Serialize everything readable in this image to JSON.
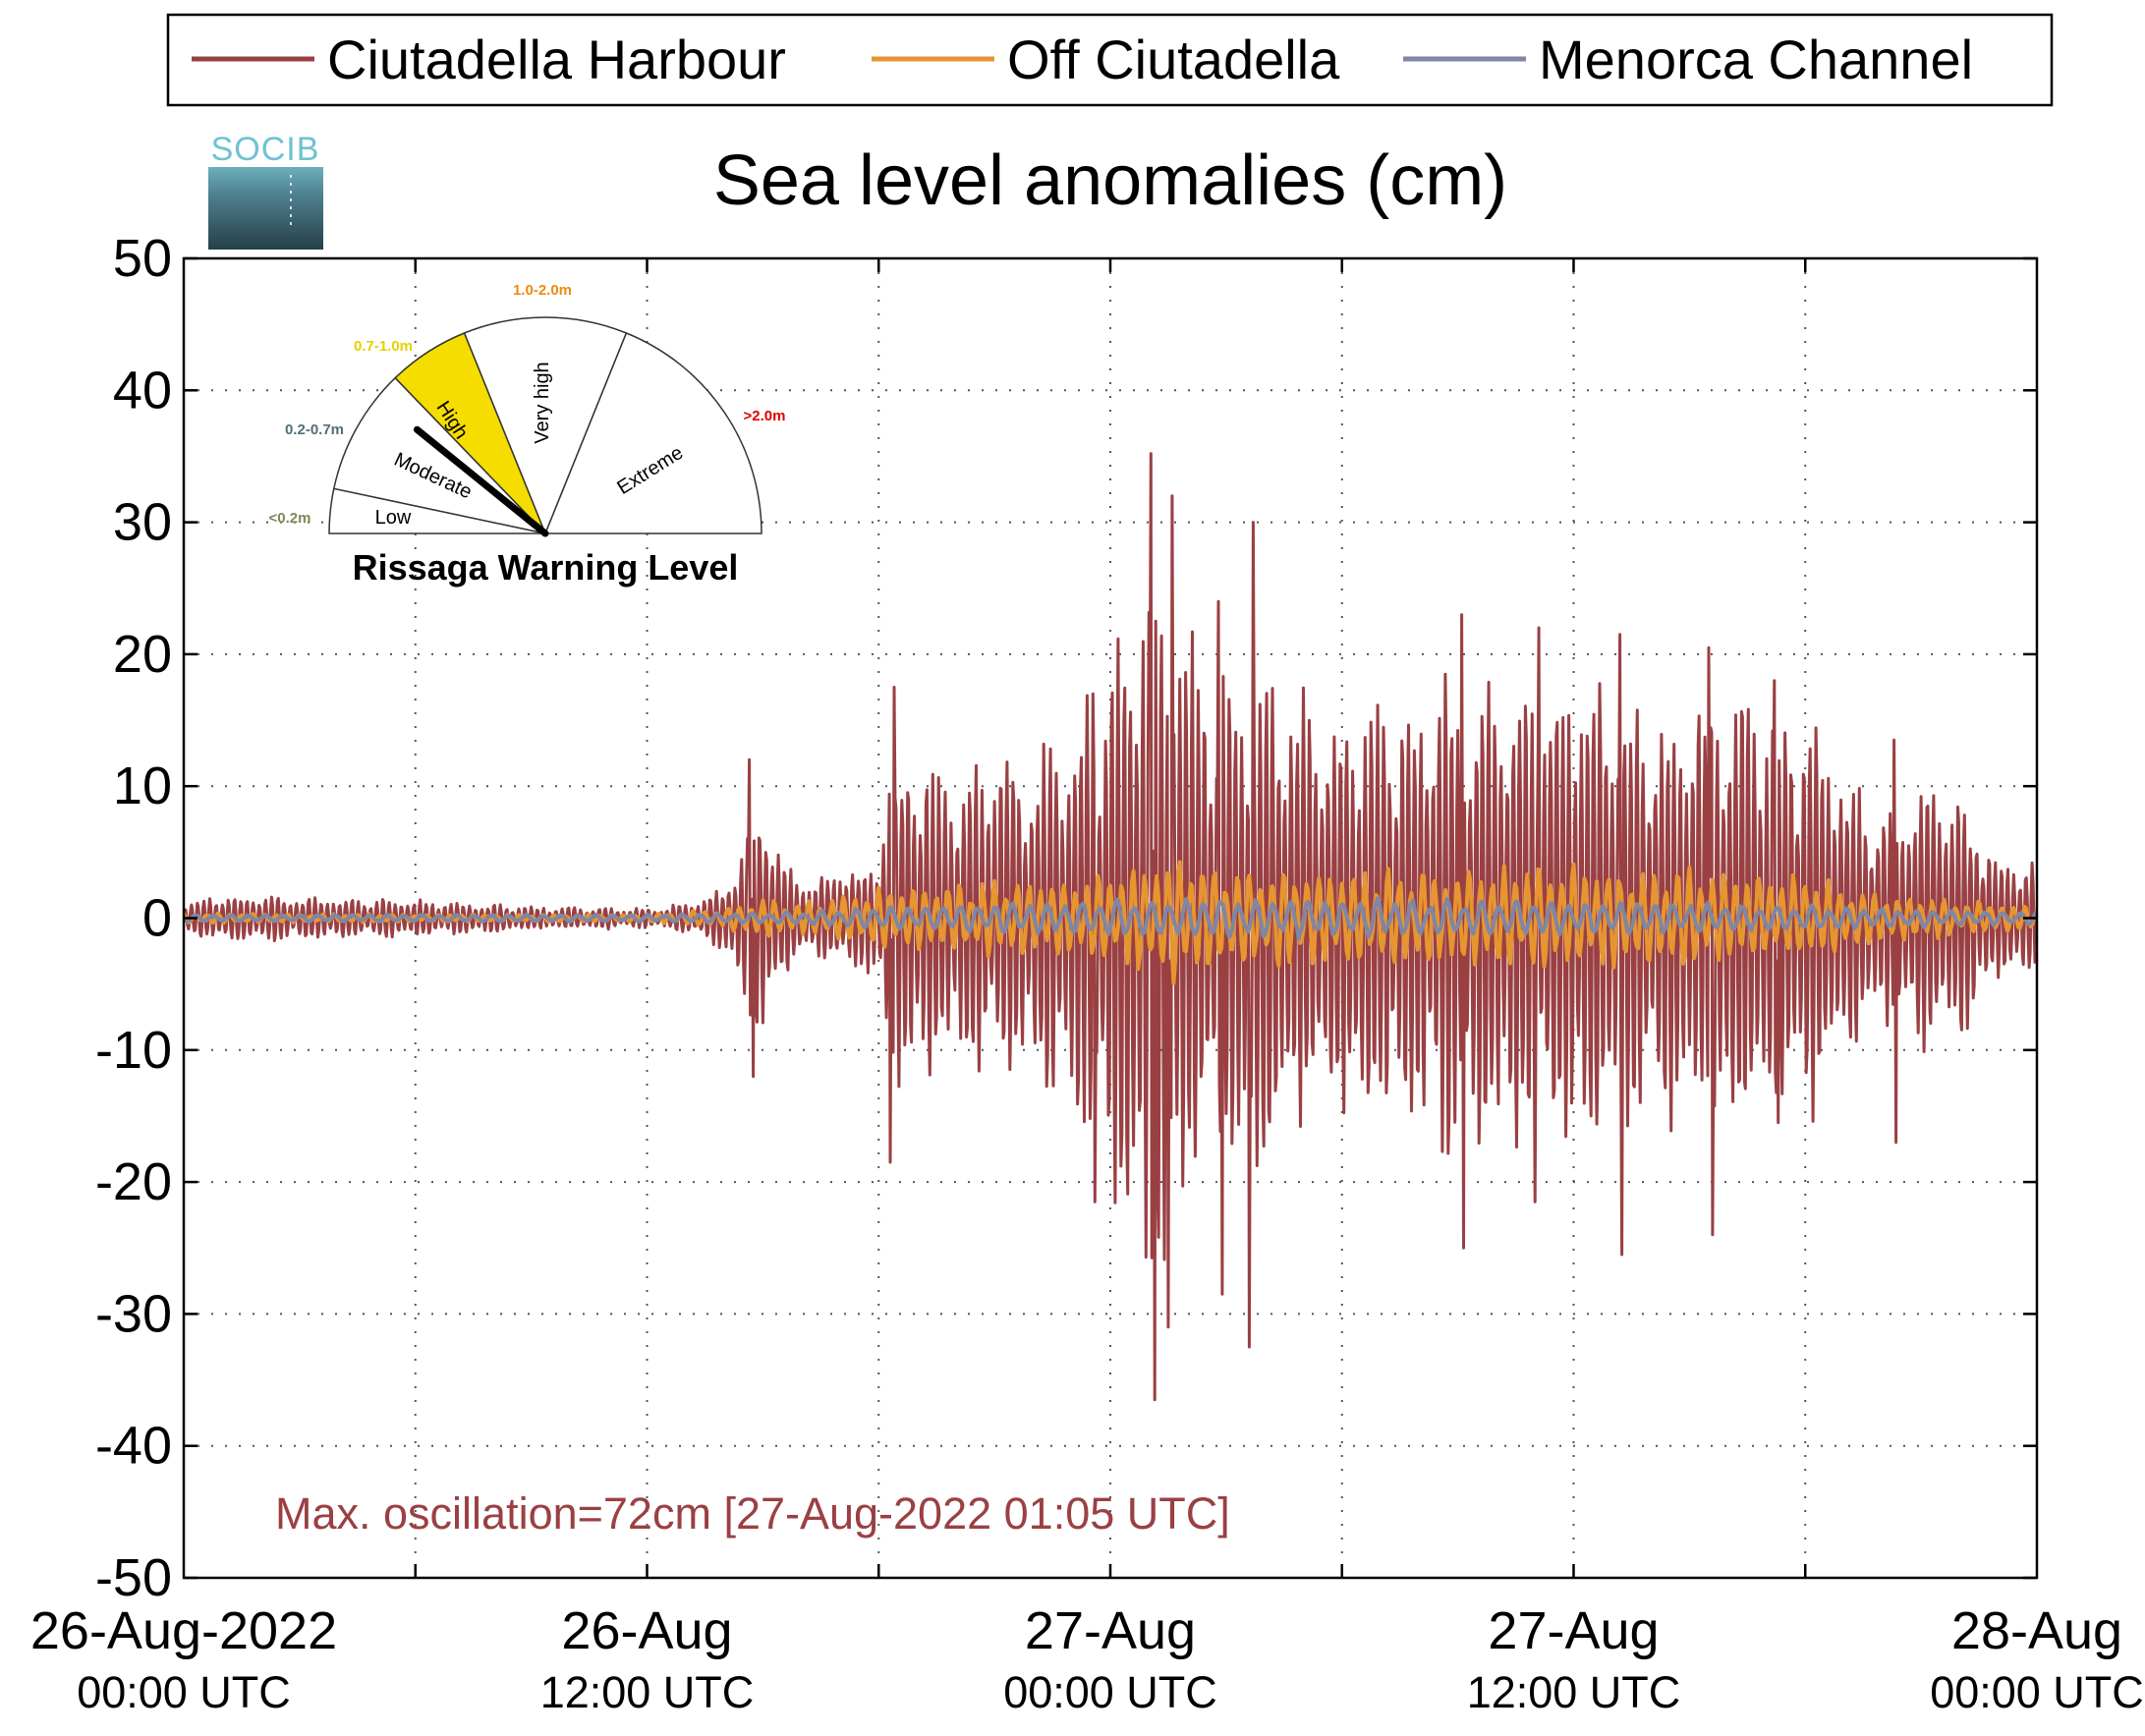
{
  "chart_data": {
    "type": "line",
    "title": "Sea level anomalies (cm)",
    "xlabel": "",
    "ylabel": "",
    "x_range": [
      "2022-08-26T00:00Z",
      "2022-08-28T00:00Z"
    ],
    "ylim": [
      -50,
      50
    ],
    "yticks": [
      50,
      40,
      30,
      20,
      10,
      0,
      -10,
      -20,
      -30,
      -40,
      -50
    ],
    "y_tick_labels": [
      "50",
      "40",
      "30",
      "20",
      "10",
      "0",
      "-10",
      "-20",
      "-30",
      "-40",
      "-50"
    ],
    "xticks": [
      {
        "top": "26-Aug-2022",
        "bottom": "00:00 UTC"
      },
      {
        "top": "26-Aug",
        "bottom": "12:00 UTC"
      },
      {
        "top": "27-Aug",
        "bottom": "00:00 UTC"
      },
      {
        "top": "27-Aug",
        "bottom": "12:00 UTC"
      },
      {
        "top": "28-Aug",
        "bottom": "00:00 UTC"
      }
    ],
    "grid": true,
    "legend_position": "top",
    "series": [
      {
        "name": "Ciutadella Harbour",
        "color": "#9a4043",
        "stroke_width": 3,
        "envelope_hours": [
          0,
          1,
          3,
          6,
          9,
          12,
          13,
          14,
          14.5,
          15,
          15.5,
          16,
          17,
          18,
          18.2,
          19,
          20,
          21,
          22,
          23,
          24,
          25,
          25.5,
          26,
          26.5,
          27,
          28,
          29,
          30,
          31,
          32,
          33,
          34,
          35,
          36,
          37,
          38,
          39,
          40,
          41,
          42,
          43,
          44,
          45,
          46,
          47,
          48
        ],
        "envelope_cm": [
          1.2,
          2,
          1.8,
          1.5,
          1,
          0.8,
          1.2,
          2.5,
          7,
          10,
          5,
          3,
          4,
          5,
          13,
          14,
          12,
          13,
          14,
          15,
          22,
          32,
          30,
          24,
          21,
          20,
          22,
          18,
          17,
          18,
          18,
          20,
          20,
          19,
          20,
          20,
          17,
          18,
          19,
          18,
          17,
          12,
          9,
          11,
          10,
          5,
          5
        ],
        "peaks": [
          {
            "t": 25.05,
            "v": 35.2
          },
          {
            "t": 25.15,
            "v": -36.5
          },
          {
            "t": 25.6,
            "v": 32
          },
          {
            "t": 25.5,
            "v": -31
          },
          {
            "t": 27.7,
            "v": 30
          },
          {
            "t": 27.6,
            "v": -32.5
          },
          {
            "t": 26.8,
            "v": 24
          },
          {
            "t": 26.9,
            "v": -28.5
          },
          {
            "t": 23.55,
            "v": 17
          },
          {
            "t": 23.6,
            "v": -21.5
          },
          {
            "t": 18.4,
            "v": 17.5
          },
          {
            "t": 18.3,
            "v": -18.5
          },
          {
            "t": 33.1,
            "v": 23
          },
          {
            "t": 33.15,
            "v": -25
          },
          {
            "t": 35.1,
            "v": 22
          },
          {
            "t": 35.0,
            "v": -21.5
          },
          {
            "t": 37.2,
            "v": 21.5
          },
          {
            "t": 37.25,
            "v": -25.5
          },
          {
            "t": 39.5,
            "v": 20.5
          },
          {
            "t": 39.6,
            "v": -24
          },
          {
            "t": 41.2,
            "v": 18
          },
          {
            "t": 41.3,
            "v": -15.5
          },
          {
            "t": 44.3,
            "v": 13.5
          },
          {
            "t": 44.35,
            "v": -17
          },
          {
            "t": 14.65,
            "v": 12
          },
          {
            "t": 14.75,
            "v": -12
          }
        ]
      },
      {
        "name": "Off Ciutadella",
        "color": "#e69530",
        "stroke_width": 4,
        "envelope_hours": [
          0,
          6,
          12,
          14,
          15,
          16,
          18,
          20,
          24,
          25,
          26,
          28,
          30,
          33,
          36,
          39,
          42,
          44,
          46,
          48
        ],
        "envelope_cm": [
          0.4,
          0.3,
          0.3,
          0.8,
          1.5,
          1.2,
          2.5,
          2.8,
          3.5,
          5,
          5,
          4,
          4,
          4,
          4.5,
          4,
          3.5,
          2,
          1.5,
          1
        ]
      },
      {
        "name": "Menorca Channel",
        "color": "#7f86a6",
        "stroke_width": 4,
        "envelope_hours": [
          0,
          6,
          12,
          16,
          18,
          20,
          24,
          26,
          30,
          36,
          40,
          44,
          48
        ],
        "envelope_cm": [
          0.3,
          0.3,
          0.3,
          0.5,
          0.9,
          1.1,
          1.5,
          1.7,
          1.6,
          1.4,
          1.2,
          0.8,
          0.5
        ]
      }
    ],
    "annotation": "Max. oscillation=72cm [27-Aug-2022 01:05 UTC]",
    "annotation_color": "#9a4043"
  },
  "logo": {
    "text": "SOCIB"
  },
  "gauge": {
    "title": "Rissaga Warning Level",
    "current_level": "High",
    "highlight_color": "#f5dd00",
    "sectors": [
      {
        "label": "Low",
        "range": "<0.2m",
        "range_color": "#7a8a52"
      },
      {
        "label": "Moderate",
        "range": "0.2-0.7m",
        "range_color": "#4f7078"
      },
      {
        "label": "High",
        "range": "0.7-1.0m",
        "range_color": "#e6d000"
      },
      {
        "label": "Very high",
        "range": "1.0-2.0m",
        "range_color": "#ef8a10"
      },
      {
        "label": "Extreme",
        "range": ">2.0m",
        "range_color": "#e00000"
      }
    ]
  }
}
